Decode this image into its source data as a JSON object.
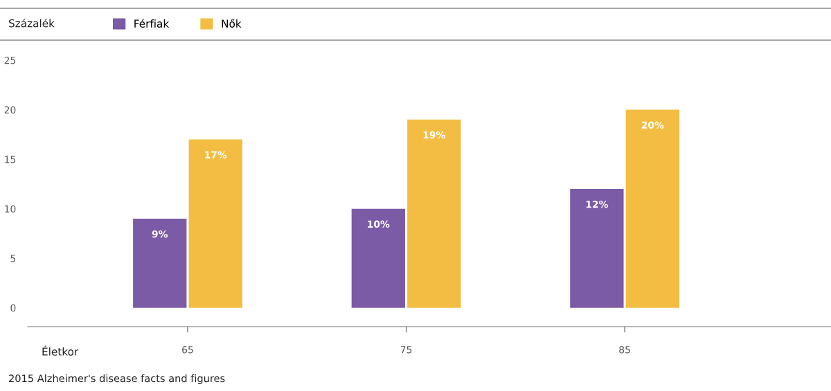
{
  "chart_data": {
    "type": "bar",
    "ylabel": "Százalék",
    "xlabel": "Életkor",
    "categories": [
      "65",
      "75",
      "85"
    ],
    "series": [
      {
        "name": "Férfiak",
        "color": "#7b5aa6",
        "values": [
          9,
          10,
          12
        ]
      },
      {
        "name": "Nők",
        "color": "#f2bd42",
        "values": [
          17,
          19,
          20
        ]
      }
    ],
    "ylim": [
      -1.9,
      25
    ],
    "yticks": [
      0,
      5,
      10,
      15,
      20,
      25
    ],
    "grid": false,
    "legend": "top left",
    "value_labels": [
      [
        "9%",
        "10%",
        "12%"
      ],
      [
        "17%",
        "19%",
        "20%"
      ]
    ],
    "annotations": [
      "2015 Alzheimer's disease facts and figures"
    ]
  }
}
